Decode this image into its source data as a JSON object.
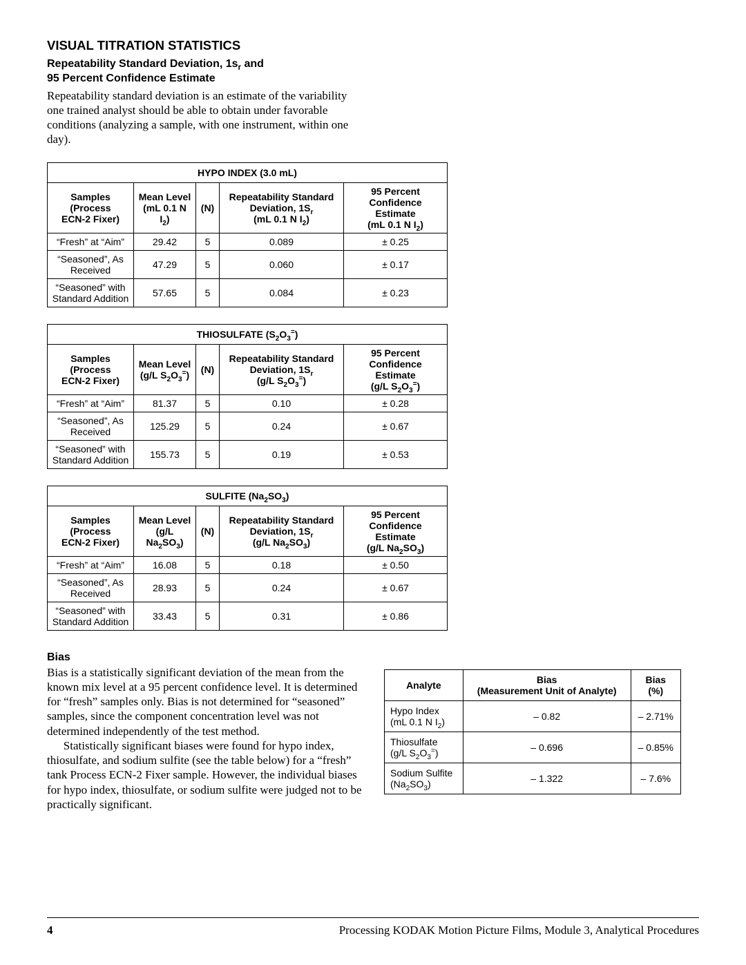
{
  "headings": {
    "section": "VISUAL TITRATION STATISTICS",
    "sub_line1": "Repeatability Standard Deviation, 1s",
    "sub_sub": "r",
    "sub_line1_tail": " and",
    "sub_line2": "95 Percent Confidence Estimate",
    "bias": "Bias"
  },
  "intro": "Repeatability standard deviation is an estimate of the variability one trained analyst should be able to obtain under favorable conditions (analyzing a sample, with one instrument, within one day).",
  "tables": [
    {
      "title_pre": "HYPO INDEX (3.0 mL)",
      "unit_html": "(mL 0.1 N I<sub>2</sub>)",
      "rows": [
        {
          "sample": "“Fresh” at “Aim”",
          "mean": "29.42",
          "n": "5",
          "rsd": "0.089",
          "ci": "± 0.25"
        },
        {
          "sample": "“Seasoned”, As Received",
          "mean": "47.29",
          "n": "5",
          "rsd": "0.060",
          "ci": "± 0.17"
        },
        {
          "sample": "“Seasoned” with Standard Addition",
          "mean": "57.65",
          "n": "5",
          "rsd": "0.084",
          "ci": "± 0.23"
        }
      ]
    },
    {
      "title_pre": "THIOSULFATE (S<sub>2</sub>O<sub>3</sub><sup>=</sup>)",
      "unit_html": "(g/L S<sub>2</sub>O<sub>3</sub><sup>=</sup>)",
      "rows": [
        {
          "sample": "“Fresh” at “Aim”",
          "mean": "81.37",
          "n": "5",
          "rsd": "0.10",
          "ci": "± 0.28"
        },
        {
          "sample": "“Seasoned”, As Received",
          "mean": "125.29",
          "n": "5",
          "rsd": "0.24",
          "ci": "± 0.67"
        },
        {
          "sample": "“Seasoned” with Standard Addition",
          "mean": "155.73",
          "n": "5",
          "rsd": "0.19",
          "ci": "± 0.53"
        }
      ]
    },
    {
      "title_pre": "SULFITE (Na<sub>2</sub>SO<sub>3</sub>)",
      "unit_html": "(g/L Na<sub>2</sub>SO<sub>3</sub>)",
      "rows": [
        {
          "sample": "“Fresh” at “Aim”",
          "mean": "16.08",
          "n": "5",
          "rsd": "0.18",
          "ci": "± 0.50"
        },
        {
          "sample": "“Seasoned”, As Received",
          "mean": "28.93",
          "n": "5",
          "rsd": "0.24",
          "ci": "± 0.67"
        },
        {
          "sample": "“Seasoned” with Standard Addition",
          "mean": "33.43",
          "n": "5",
          "rsd": "0.31",
          "ci": "± 0.86"
        }
      ]
    }
  ],
  "col_labels": {
    "sample_l1": "Samples (Process",
    "sample_l2": "ECN-2 Fixer)",
    "mean": "Mean Level",
    "n": "(N)",
    "rsd_l1": "Repeatability Standard",
    "rsd_l2_pre": "Deviation, 1S",
    "rsd_l2_sub": "r",
    "ci_l1": "95 Percent",
    "ci_l2": "Confidence Estimate"
  },
  "bias_text": {
    "p1": "Bias is a statistically significant deviation of the mean from the known mix level at a 95 percent confidence level. It is determined for “fresh” samples only. Bias is not determined for “seasoned” samples, since the component concentration level was not determined independently of the test method.",
    "p2": "Statistically significant biases were found for hypo index, thiosulfate, and sodium sulfite (see the table below) for a “fresh” tank Process ECN-2 Fixer sample. However, the individual biases for hypo index, thiosulfate, or sodium sulfite were judged not to be practically significant."
  },
  "bias_table": {
    "head": {
      "analyte": "Analyte",
      "bias_l1": "Bias",
      "bias_l2": "(Measurement Unit of Analyte)",
      "pct_l1": "Bias",
      "pct_l2": "(%)"
    },
    "rows": [
      {
        "analyte_html": "Hypo Index<br>(mL 0.1 N I<sub>2</sub>)",
        "bias": "– 0.82",
        "pct": "– 2.71%"
      },
      {
        "analyte_html": "Thiosulfate<br>(g/L S<sub>2</sub>O<sub>3</sub><sup>=</sup>)",
        "bias": "– 0.696",
        "pct": "– 0.85%"
      },
      {
        "analyte_html": "Sodium Sulfite<br>(Na<sub>2</sub>SO<sub>3</sub>)",
        "bias": "– 1.322",
        "pct": "– 7.6%"
      }
    ]
  },
  "footer": {
    "page": "4",
    "text": "Processing KODAK Motion Picture Films, Module 3, Analytical Procedures"
  }
}
